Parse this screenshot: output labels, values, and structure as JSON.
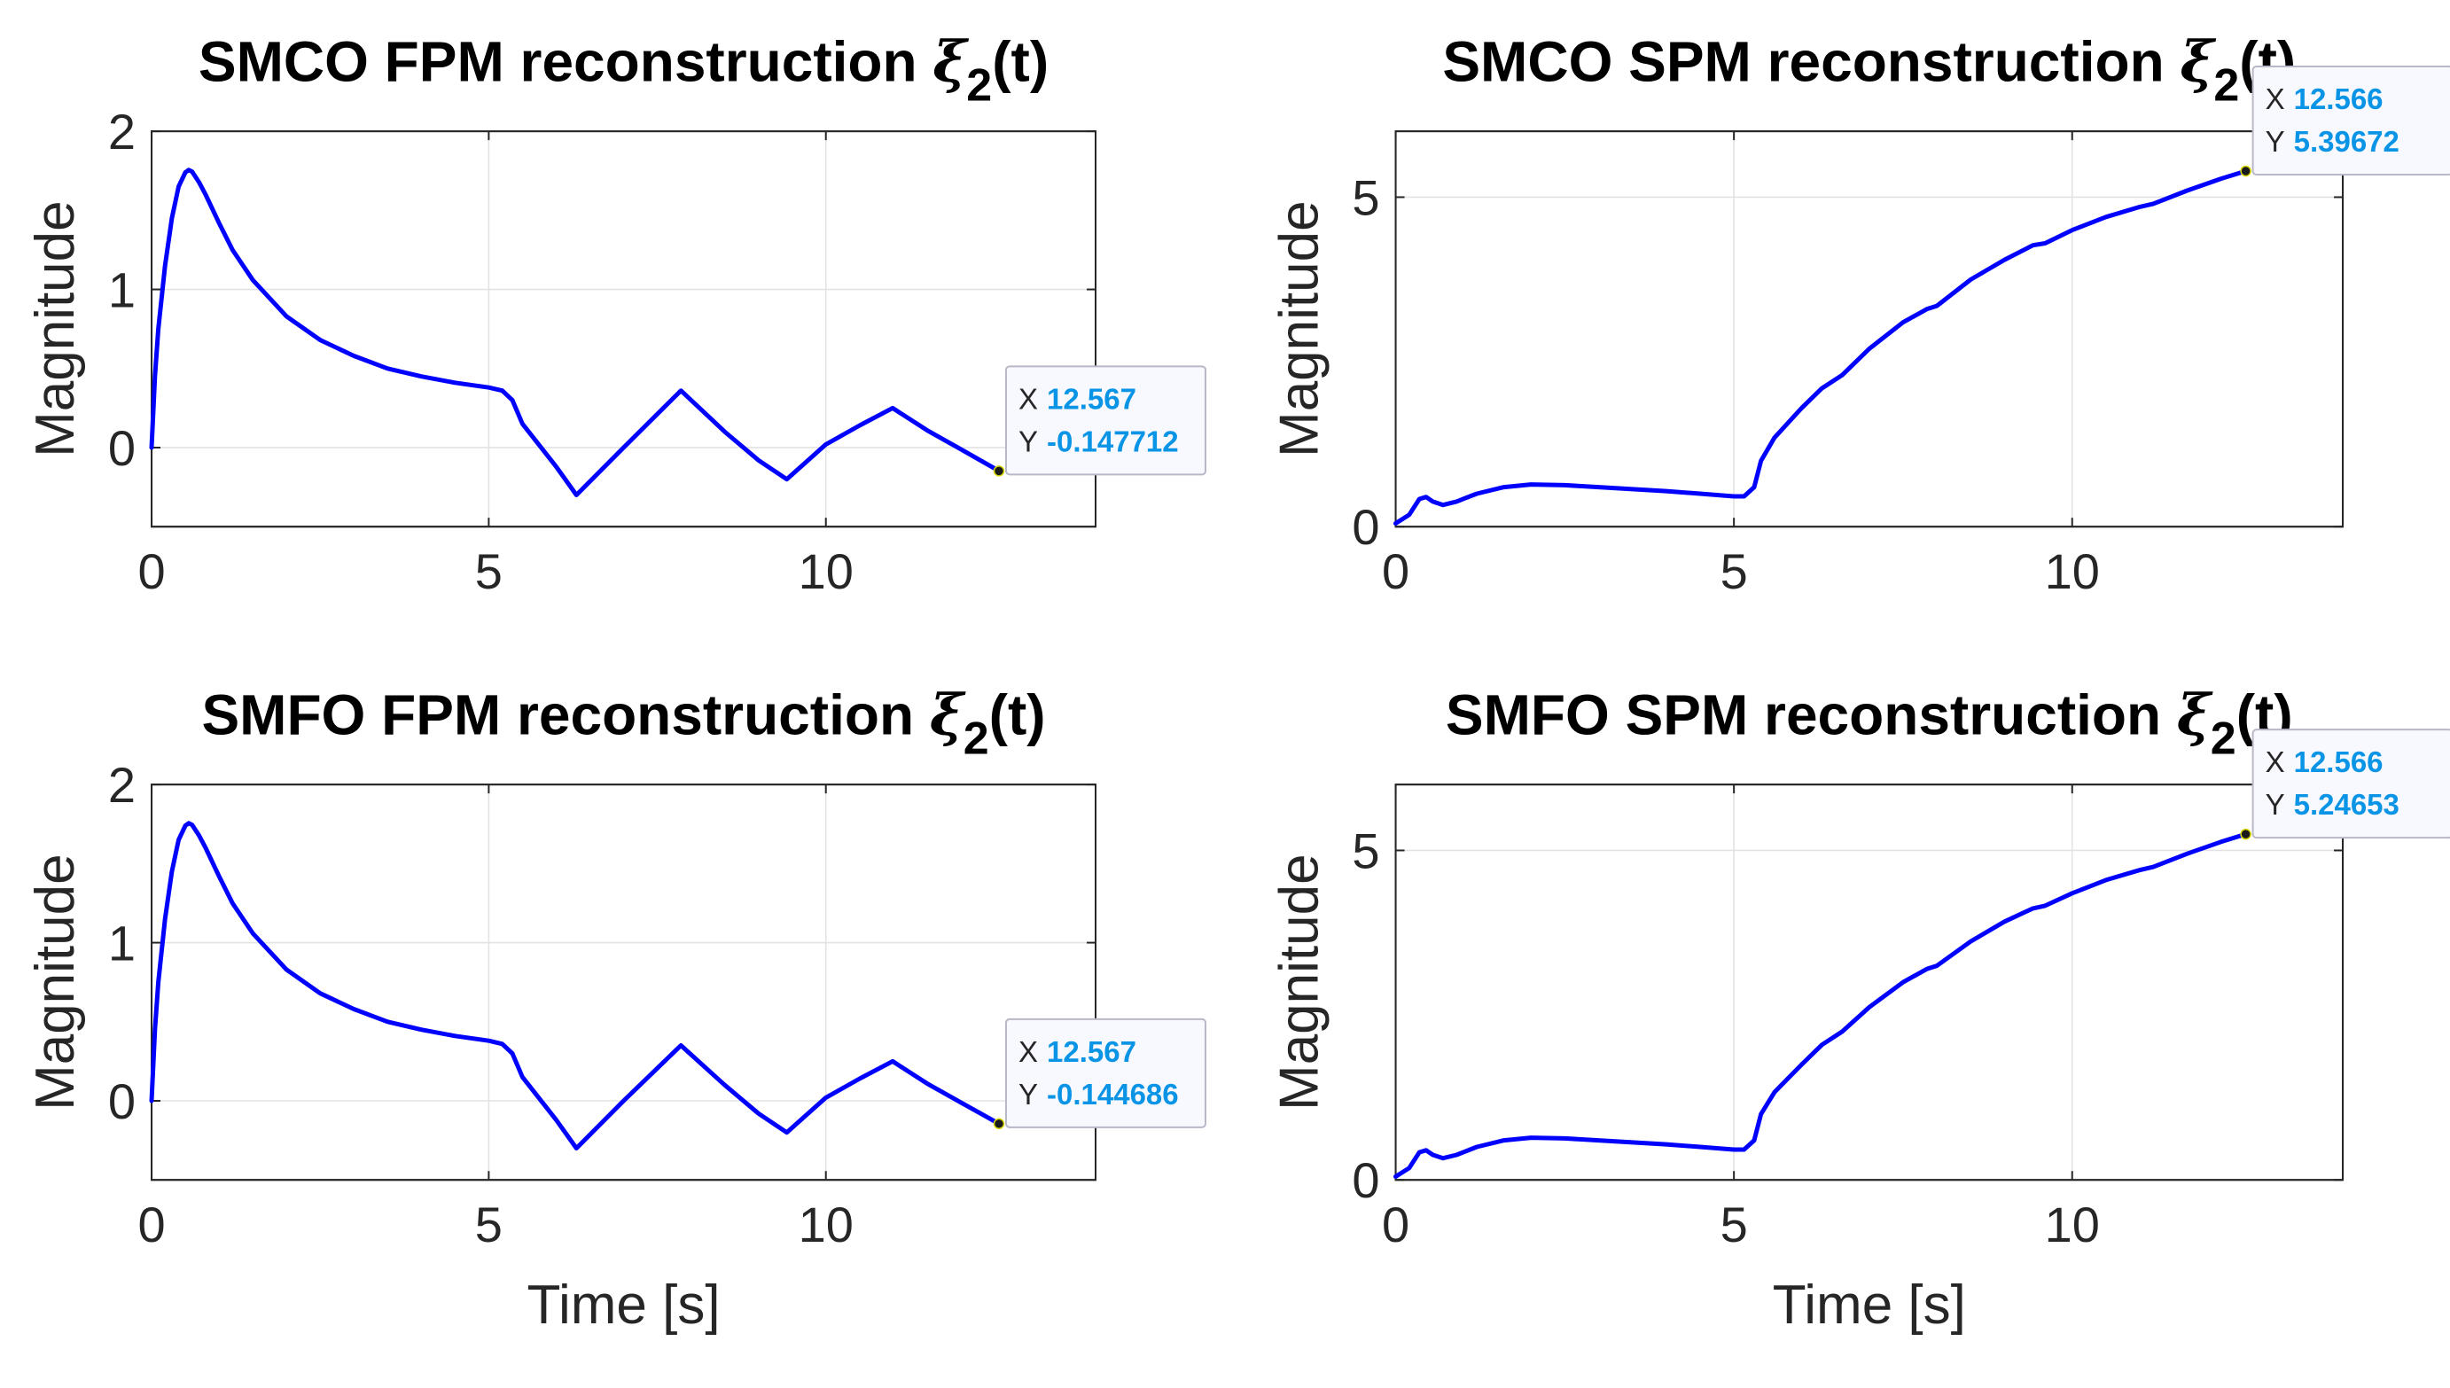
{
  "chart_data": [
    {
      "type": "line",
      "title": "SMCO FPM reconstruction",
      "title_symbol": "ξ",
      "title_subscript": "2",
      "title_suffix": "(t)",
      "xlabel": "",
      "ylabel": "Magnitude",
      "xlim": [
        0,
        14
      ],
      "ylim": [
        -0.5,
        2
      ],
      "xticks": [
        0,
        5,
        10
      ],
      "xtick_labels": [
        "0",
        "5",
        "10"
      ],
      "yticks": [
        0,
        1,
        2
      ],
      "ytick_labels": [
        "0",
        "1",
        "2"
      ],
      "grid": true,
      "series_color": "#0000ff",
      "x": [
        0,
        0.05,
        0.1,
        0.2,
        0.3,
        0.4,
        0.5,
        0.55,
        0.6,
        0.7,
        0.8,
        1.0,
        1.2,
        1.5,
        2.0,
        2.5,
        3.0,
        3.5,
        4.0,
        4.5,
        5.0,
        5.2,
        5.35,
        5.5,
        6.0,
        6.3,
        7.0,
        7.85,
        8.5,
        9.0,
        9.42,
        10.0,
        10.5,
        10.99,
        11.5,
        12.0,
        12.567
      ],
      "y": [
        0,
        0.45,
        0.75,
        1.15,
        1.45,
        1.65,
        1.74,
        1.755,
        1.745,
        1.68,
        1.6,
        1.42,
        1.25,
        1.06,
        0.83,
        0.68,
        0.58,
        0.5,
        0.45,
        0.41,
        0.38,
        0.36,
        0.3,
        0.15,
        -0.12,
        -0.3,
        0.0,
        0.36,
        0.1,
        -0.08,
        -0.2,
        0.02,
        0.14,
        0.25,
        0.11,
        -0.01,
        -0.147712
      ],
      "datatip": {
        "x_key": "X",
        "x_value": "12.567",
        "y_key": "Y",
        "y_value": "-0.147712",
        "x": 12.567,
        "y": -0.147712
      }
    },
    {
      "type": "line",
      "title": "SMCO SPM reconstruction",
      "title_symbol": "ξ",
      "title_subscript": "2",
      "title_suffix": "(t)",
      "xlabel": "",
      "ylabel": "Magnitude",
      "xlim": [
        0,
        14
      ],
      "ylim": [
        0,
        6
      ],
      "xticks": [
        0,
        5,
        10
      ],
      "xtick_labels": [
        "0",
        "5",
        "10"
      ],
      "yticks": [
        0,
        5
      ],
      "ytick_labels": [
        "0",
        "5"
      ],
      "grid": true,
      "series_color": "#0000ff",
      "x": [
        0,
        0.2,
        0.35,
        0.45,
        0.55,
        0.7,
        0.9,
        1.2,
        1.6,
        2.0,
        2.5,
        3.0,
        4.0,
        4.5,
        5.0,
        5.15,
        5.3,
        5.4,
        5.6,
        6.0,
        6.3,
        6.6,
        7.0,
        7.5,
        7.85,
        8.0,
        8.5,
        9.0,
        9.42,
        9.6,
        10.0,
        10.5,
        10.99,
        11.2,
        11.7,
        12.2,
        12.566
      ],
      "y": [
        0.05,
        0.18,
        0.42,
        0.45,
        0.38,
        0.33,
        0.38,
        0.5,
        0.6,
        0.64,
        0.63,
        0.6,
        0.54,
        0.5,
        0.46,
        0.46,
        0.6,
        1.0,
        1.35,
        1.8,
        2.1,
        2.3,
        2.7,
        3.1,
        3.3,
        3.35,
        3.75,
        4.05,
        4.27,
        4.3,
        4.5,
        4.7,
        4.85,
        4.9,
        5.1,
        5.28,
        5.39672
      ],
      "datatip": {
        "x_key": "X",
        "x_value": "12.566",
        "y_key": "Y",
        "y_value": "5.39672",
        "x": 12.566,
        "y": 5.39672
      }
    },
    {
      "type": "line",
      "title": "SMFO FPM reconstruction",
      "title_symbol": "ξ",
      "title_subscript": "2",
      "title_suffix": "(t)",
      "xlabel": "Time [s]",
      "ylabel": "Magnitude",
      "xlim": [
        0,
        14
      ],
      "ylim": [
        -0.5,
        2
      ],
      "xticks": [
        0,
        5,
        10
      ],
      "xtick_labels": [
        "0",
        "5",
        "10"
      ],
      "yticks": [
        0,
        1,
        2
      ],
      "ytick_labels": [
        "0",
        "1",
        "2"
      ],
      "grid": true,
      "series_color": "#0000ff",
      "x": [
        0,
        0.05,
        0.1,
        0.2,
        0.3,
        0.4,
        0.5,
        0.55,
        0.6,
        0.7,
        0.8,
        1.0,
        1.2,
        1.5,
        2.0,
        2.5,
        3.0,
        3.5,
        4.0,
        4.5,
        5.0,
        5.2,
        5.35,
        5.5,
        6.0,
        6.3,
        7.0,
        7.85,
        8.5,
        9.0,
        9.42,
        10.0,
        10.5,
        10.99,
        11.5,
        12.0,
        12.567
      ],
      "y": [
        0,
        0.45,
        0.75,
        1.15,
        1.45,
        1.65,
        1.74,
        1.755,
        1.745,
        1.68,
        1.6,
        1.42,
        1.25,
        1.06,
        0.83,
        0.68,
        0.58,
        0.5,
        0.45,
        0.41,
        0.38,
        0.36,
        0.3,
        0.15,
        -0.12,
        -0.3,
        0.0,
        0.35,
        0.1,
        -0.08,
        -0.2,
        0.02,
        0.14,
        0.25,
        0.11,
        -0.01,
        -0.144686
      ],
      "datatip": {
        "x_key": "X",
        "x_value": "12.567",
        "y_key": "Y",
        "y_value": "-0.144686",
        "x": 12.567,
        "y": -0.144686
      }
    },
    {
      "type": "line",
      "title": "SMFO SPM reconstruction",
      "title_symbol": "ξ",
      "title_subscript": "2",
      "title_suffix": "(t)",
      "xlabel": "Time [s]",
      "ylabel": "Magnitude",
      "xlim": [
        0,
        14
      ],
      "ylim": [
        0,
        6
      ],
      "xticks": [
        0,
        5,
        10
      ],
      "xtick_labels": [
        "0",
        "5",
        "10"
      ],
      "yticks": [
        0,
        5
      ],
      "ytick_labels": [
        "0",
        "5"
      ],
      "grid": true,
      "series_color": "#0000ff",
      "x": [
        0,
        0.2,
        0.35,
        0.45,
        0.55,
        0.7,
        0.9,
        1.2,
        1.6,
        2.0,
        2.5,
        3.0,
        4.0,
        4.5,
        5.0,
        5.15,
        5.3,
        5.4,
        5.6,
        6.0,
        6.3,
        6.6,
        7.0,
        7.5,
        7.85,
        8.0,
        8.5,
        9.0,
        9.42,
        9.6,
        10.0,
        10.5,
        10.99,
        11.2,
        11.7,
        12.2,
        12.566
      ],
      "y": [
        0.05,
        0.18,
        0.42,
        0.45,
        0.38,
        0.33,
        0.38,
        0.5,
        0.6,
        0.64,
        0.63,
        0.6,
        0.54,
        0.5,
        0.46,
        0.46,
        0.6,
        1.0,
        1.33,
        1.75,
        2.05,
        2.25,
        2.62,
        3.0,
        3.2,
        3.25,
        3.62,
        3.92,
        4.12,
        4.16,
        4.35,
        4.55,
        4.7,
        4.75,
        4.95,
        5.13,
        5.24653
      ],
      "datatip": {
        "x_key": "X",
        "x_value": "12.566",
        "y_key": "Y",
        "y_value": "5.24653",
        "x": 12.566,
        "y": 5.24653
      }
    }
  ]
}
